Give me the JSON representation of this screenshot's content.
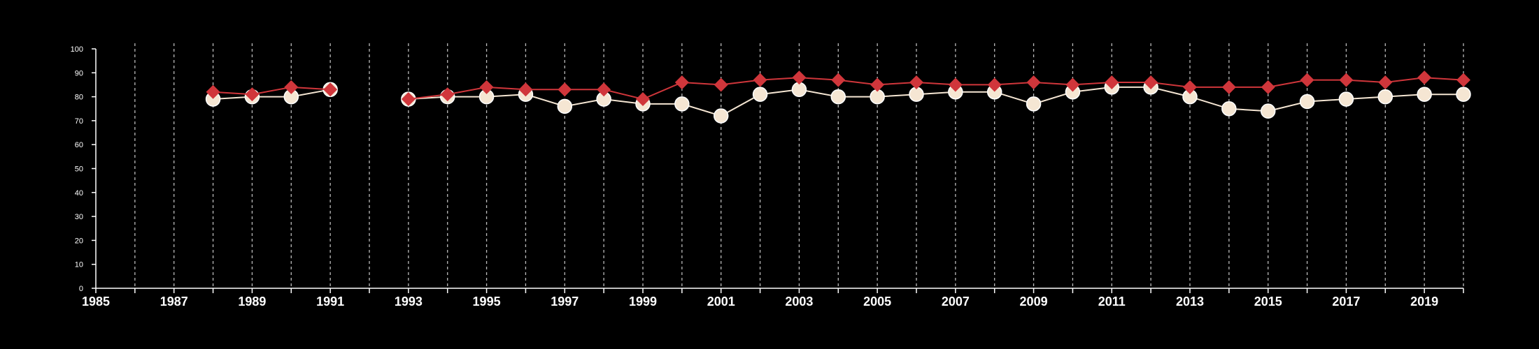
{
  "chart_data": {
    "type": "line",
    "title": "",
    "xlabel": "",
    "ylabel": "",
    "xlim": [
      1985,
      2020
    ],
    "ylim": [
      0,
      100
    ],
    "x_ticks": [
      1985,
      1987,
      1989,
      1991,
      1993,
      1995,
      1997,
      1999,
      2001,
      2003,
      2005,
      2007,
      2009,
      2011,
      2013,
      2015,
      2017,
      2019
    ],
    "y_ticks": [
      0,
      10,
      20,
      30,
      40,
      50,
      60,
      70,
      80,
      90,
      100
    ],
    "gridlines": "vertical dashed, one per year",
    "legend": "none",
    "series": [
      {
        "marker": "diamond",
        "color": "#d0363b",
        "points": [
          {
            "x": 1988,
            "y": 82
          },
          {
            "x": 1989,
            "y": 81
          },
          {
            "x": 1990,
            "y": 84
          },
          {
            "x": 1991,
            "y": 83
          },
          {
            "x": 1993,
            "y": 79
          },
          {
            "x": 1994,
            "y": 81
          },
          {
            "x": 1995,
            "y": 84
          },
          {
            "x": 1996,
            "y": 83
          },
          {
            "x": 1997,
            "y": 83
          },
          {
            "x": 1998,
            "y": 83
          },
          {
            "x": 1999,
            "y": 79
          },
          {
            "x": 2000,
            "y": 86
          },
          {
            "x": 2001,
            "y": 85
          },
          {
            "x": 2002,
            "y": 87
          },
          {
            "x": 2003,
            "y": 88
          },
          {
            "x": 2004,
            "y": 87
          },
          {
            "x": 2005,
            "y": 85
          },
          {
            "x": 2006,
            "y": 86
          },
          {
            "x": 2007,
            "y": 85
          },
          {
            "x": 2008,
            "y": 85
          },
          {
            "x": 2009,
            "y": 86
          },
          {
            "x": 2010,
            "y": 85
          },
          {
            "x": 2011,
            "y": 86
          },
          {
            "x": 2012,
            "y": 86
          },
          {
            "x": 2013,
            "y": 84
          },
          {
            "x": 2014,
            "y": 84
          },
          {
            "x": 2015,
            "y": 84
          },
          {
            "x": 2016,
            "y": 87
          },
          {
            "x": 2017,
            "y": 87
          },
          {
            "x": 2018,
            "y": 86
          },
          {
            "x": 2019,
            "y": 88
          },
          {
            "x": 2020,
            "y": 87
          }
        ]
      },
      {
        "marker": "circle",
        "color": "#f5e6d3",
        "points": [
          {
            "x": 1988,
            "y": 79
          },
          {
            "x": 1989,
            "y": 80
          },
          {
            "x": 1990,
            "y": 80
          },
          {
            "x": 1991,
            "y": 83
          },
          {
            "x": 1993,
            "y": 79
          },
          {
            "x": 1994,
            "y": 80
          },
          {
            "x": 1995,
            "y": 80
          },
          {
            "x": 1996,
            "y": 81
          },
          {
            "x": 1997,
            "y": 76
          },
          {
            "x": 1998,
            "y": 79
          },
          {
            "x": 1999,
            "y": 77
          },
          {
            "x": 2000,
            "y": 77
          },
          {
            "x": 2001,
            "y": 72
          },
          {
            "x": 2002,
            "y": 81
          },
          {
            "x": 2003,
            "y": 83
          },
          {
            "x": 2004,
            "y": 80
          },
          {
            "x": 2005,
            "y": 80
          },
          {
            "x": 2006,
            "y": 81
          },
          {
            "x": 2007,
            "y": 82
          },
          {
            "x": 2008,
            "y": 82
          },
          {
            "x": 2009,
            "y": 77
          },
          {
            "x": 2010,
            "y": 82
          },
          {
            "x": 2011,
            "y": 84
          },
          {
            "x": 2012,
            "y": 84
          },
          {
            "x": 2013,
            "y": 80
          },
          {
            "x": 2014,
            "y": 75
          },
          {
            "x": 2015,
            "y": 74
          },
          {
            "x": 2016,
            "y": 78
          },
          {
            "x": 2017,
            "y": 79
          },
          {
            "x": 2018,
            "y": 80
          },
          {
            "x": 2019,
            "y": 81
          },
          {
            "x": 2020,
            "y": 81
          }
        ]
      }
    ]
  }
}
